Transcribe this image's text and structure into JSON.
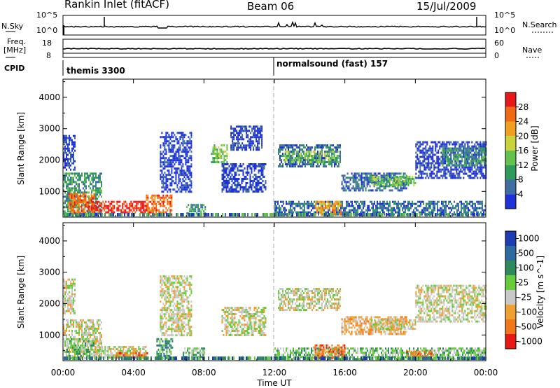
{
  "header": {
    "station": "Rankin Inlet (fitACF)",
    "beam": "Beam 06",
    "date": "15/Jul/2009"
  },
  "noise_panel": {
    "left_label": "N.Sky",
    "left_ticks": [
      "10^5",
      "10^0"
    ],
    "right_label": "N.Search",
    "right_ticks": [
      "10^5",
      "10^0"
    ]
  },
  "freq_panel": {
    "left_label_1": "Freq.",
    "left_label_2": "[MHz]",
    "left_ticks": [
      "18",
      "8"
    ],
    "right_label": "Nave",
    "right_ticks": [
      "60",
      "0"
    ]
  },
  "cpid": {
    "label": "CPID",
    "segments": [
      {
        "name": "themis 3300",
        "start_hour": 0
      },
      {
        "name": "normalsound (fast) 157",
        "start_hour": 12
      }
    ]
  },
  "colors": {
    "power_scale": [
      "#1e32d8",
      "#3f6fa0",
      "#2e9a5c",
      "#63c24b",
      "#c8d43a",
      "#f0a01e",
      "#f06a14",
      "#e81818"
    ],
    "velocity_scale": [
      "#1e3cb4",
      "#2c6aa0",
      "#2e8a5a",
      "#66cc3c",
      "#c8c8c8",
      "#f0a030",
      "#f07818",
      "#e81818"
    ]
  },
  "chart_data": [
    {
      "type": "heatmap",
      "quantity": "Power",
      "xlabel": "",
      "ylabel": "Slant Range [km]",
      "x_ticks": [
        "00:00",
        "04:00",
        "08:00",
        "12:00",
        "16:00",
        "20:00",
        "00:00"
      ],
      "xlim_hours": [
        0,
        24
      ],
      "y_ticks": [
        1000,
        2000,
        3000,
        4000
      ],
      "ylim": [
        180,
        4580
      ],
      "colorbar_label": "Power [dB]",
      "colorbar_ticks": [
        4,
        8,
        12,
        16,
        20,
        24,
        28
      ],
      "regions": [
        {
          "t": [
            0.0,
            0.7
          ],
          "r": [
            1700,
            2800
          ],
          "level": 0
        },
        {
          "t": [
            0.0,
            2.2
          ],
          "r": [
            250,
            1600
          ],
          "level": 2
        },
        {
          "t": [
            0.3,
            1.8
          ],
          "r": [
            300,
            950
          ],
          "level": 6
        },
        {
          "t": [
            1.6,
            4.8
          ],
          "r": [
            300,
            700
          ],
          "level": 7
        },
        {
          "t": [
            4.7,
            6.2
          ],
          "r": [
            250,
            900
          ],
          "level": 6
        },
        {
          "t": [
            5.5,
            7.3
          ],
          "r": [
            1000,
            2900
          ],
          "level": 0
        },
        {
          "t": [
            7.0,
            8.1
          ],
          "r": [
            250,
            600
          ],
          "level": 2
        },
        {
          "t": [
            8.4,
            9.3
          ],
          "r": [
            1900,
            2500
          ],
          "level": 3
        },
        {
          "t": [
            9.0,
            11.5
          ],
          "r": [
            1000,
            1900
          ],
          "level": 0
        },
        {
          "t": [
            9.5,
            11.3
          ],
          "r": [
            2300,
            3100
          ],
          "level": 0
        },
        {
          "t": [
            12.2,
            15.7
          ],
          "r": [
            1800,
            2500
          ],
          "level": 1
        },
        {
          "t": [
            12.5,
            15.6
          ],
          "r": [
            1900,
            2300
          ],
          "level": 3
        },
        {
          "t": [
            12.0,
            24.0
          ],
          "r": [
            250,
            700
          ],
          "level": 1
        },
        {
          "t": [
            14.3,
            15.8
          ],
          "r": [
            250,
            700
          ],
          "level": 5
        },
        {
          "t": [
            15.8,
            19.5
          ],
          "r": [
            1000,
            1600
          ],
          "level": 1
        },
        {
          "t": [
            17.5,
            20.0
          ],
          "r": [
            1200,
            1500
          ],
          "level": 3
        },
        {
          "t": [
            20.0,
            24.0
          ],
          "r": [
            1400,
            2600
          ],
          "level": 0
        },
        {
          "t": [
            21.5,
            24.0
          ],
          "r": [
            1800,
            2400
          ],
          "level": 2
        }
      ]
    },
    {
      "type": "heatmap",
      "quantity": "Velocity",
      "xlabel": "Time UT",
      "ylabel": "Slant Range [km]",
      "x_ticks": [
        "00:00",
        "04:00",
        "08:00",
        "12:00",
        "16:00",
        "20:00",
        "00:00"
      ],
      "xlim_hours": [
        0,
        24
      ],
      "y_ticks": [
        1000,
        2000,
        3000,
        4000
      ],
      "ylim": [
        180,
        4580
      ],
      "colorbar_label": "Velocity [m s^-1]",
      "colorbar_ticks": [
        "1000",
        "500",
        "100",
        "25",
        "-25",
        "-100",
        "-500",
        "-1000"
      ],
      "regions": [
        {
          "t": [
            0.0,
            2.2
          ],
          "r": [
            250,
            1500
          ],
          "level": 4
        },
        {
          "t": [
            0.0,
            0.7
          ],
          "r": [
            1700,
            2800
          ],
          "level": 4
        },
        {
          "t": [
            0.2,
            1.8
          ],
          "r": [
            300,
            900
          ],
          "level": 3
        },
        {
          "t": [
            1.8,
            4.7
          ],
          "r": [
            250,
            650
          ],
          "level": 4
        },
        {
          "t": [
            3.0,
            4.8
          ],
          "r": [
            250,
            450
          ],
          "level": 6
        },
        {
          "t": [
            5.3,
            6.2
          ],
          "r": [
            250,
            900
          ],
          "level": 2
        },
        {
          "t": [
            5.5,
            7.3
          ],
          "r": [
            1000,
            2900
          ],
          "level": 4
        },
        {
          "t": [
            6.8,
            8.0
          ],
          "r": [
            250,
            600
          ],
          "level": 3
        },
        {
          "t": [
            9.0,
            11.5
          ],
          "r": [
            1000,
            1900
          ],
          "level": 4
        },
        {
          "t": [
            12.2,
            15.7
          ],
          "r": [
            1800,
            2500
          ],
          "level": 4
        },
        {
          "t": [
            12.0,
            24.0
          ],
          "r": [
            250,
            600
          ],
          "level": 3
        },
        {
          "t": [
            14.2,
            16.0
          ],
          "r": [
            250,
            700
          ],
          "level": 6
        },
        {
          "t": [
            15.8,
            19.5
          ],
          "r": [
            1000,
            1600
          ],
          "level": 5
        },
        {
          "t": [
            17.5,
            20.0
          ],
          "r": [
            1200,
            1500
          ],
          "level": 4
        },
        {
          "t": [
            20.0,
            24.0
          ],
          "r": [
            1400,
            2600
          ],
          "level": 4
        },
        {
          "t": [
            19.5,
            21.0
          ],
          "r": [
            250,
            500
          ],
          "level": 6
        }
      ]
    }
  ]
}
